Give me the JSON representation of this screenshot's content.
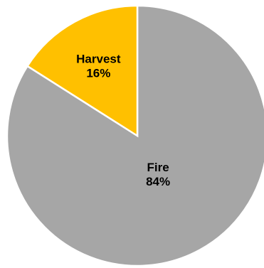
{
  "chart_data": {
    "type": "pie",
    "slices": [
      {
        "label": "Fire",
        "value": 84,
        "display": "84%",
        "color": "#a6a6a6"
      },
      {
        "label": "Harvest",
        "value": 16,
        "display": "16%",
        "color": "#ffc000"
      }
    ],
    "start": "top",
    "direction": "clockwise",
    "legend": "none",
    "labels": "inside"
  }
}
